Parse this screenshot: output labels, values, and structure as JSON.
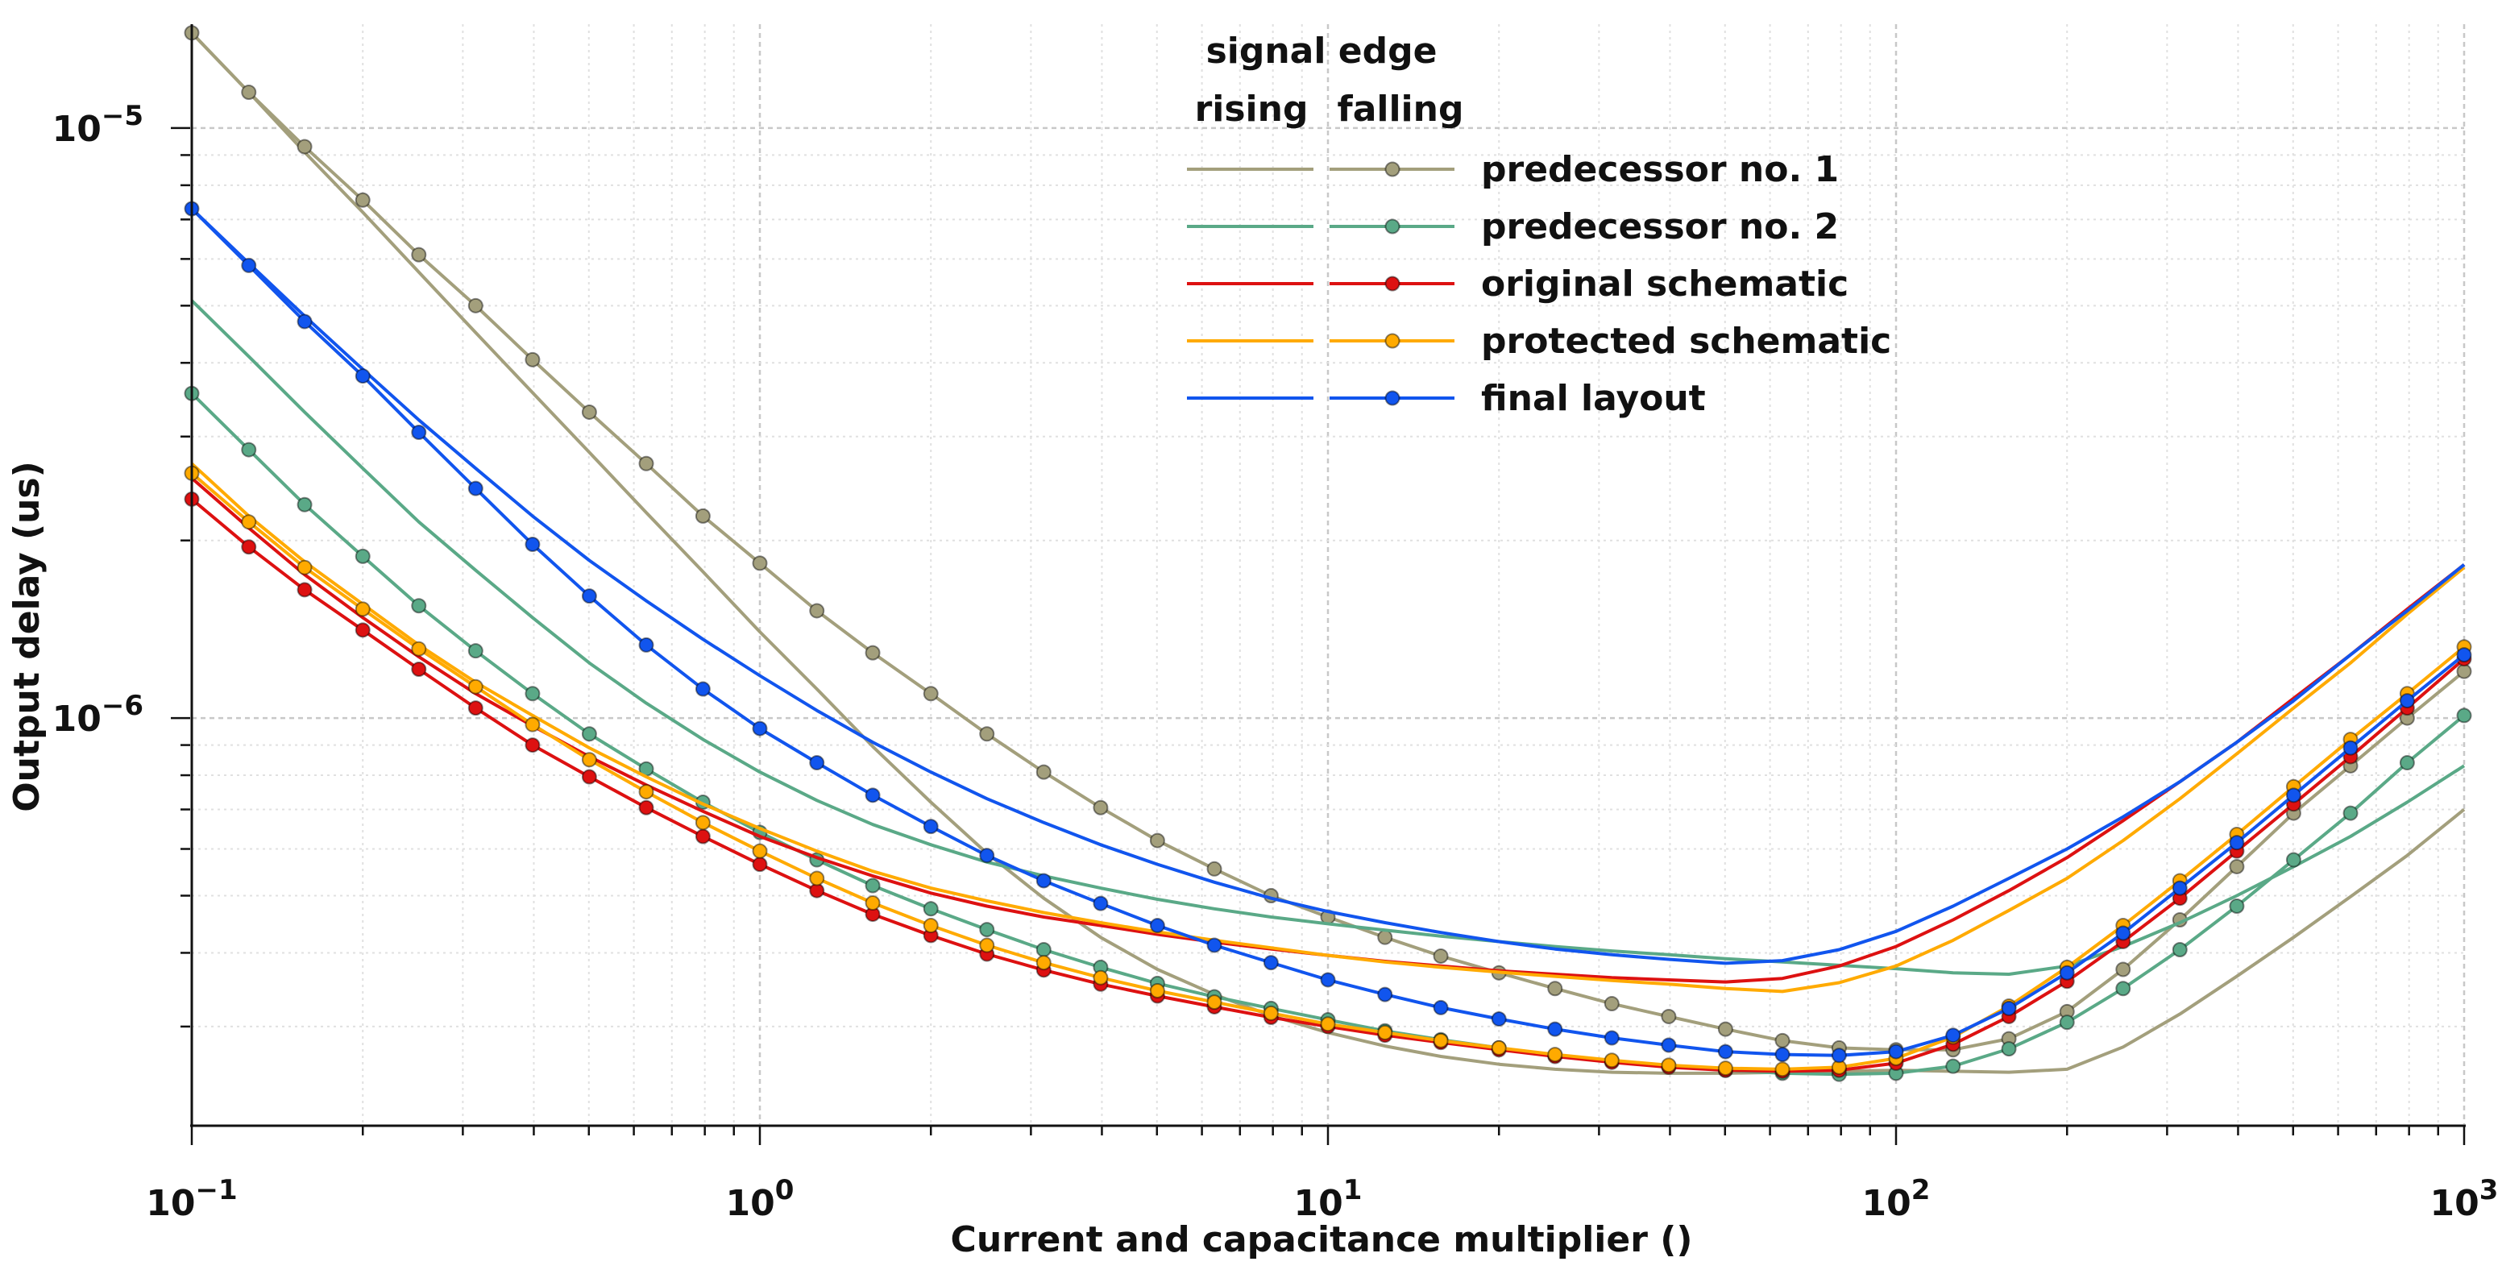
{
  "chart_data": {
    "type": "line",
    "title": "",
    "xlabel": "Current and capacitance multiplier ()",
    "ylabel": "Output delay (us)",
    "xscale": "log",
    "yscale": "log",
    "xlim": [
      0.1,
      1000
    ],
    "ylim": [
      2.05e-07,
      1.5e-05
    ],
    "grid": true,
    "x_ticks": [
      {
        "base": "10",
        "exp": "−1",
        "value": 0.1
      },
      {
        "base": "10",
        "exp": "0",
        "value": 1
      },
      {
        "base": "10",
        "exp": "1",
        "value": 10
      },
      {
        "base": "10",
        "exp": "2",
        "value": 100
      },
      {
        "base": "10",
        "exp": "3",
        "value": 1000
      }
    ],
    "y_ticks": [
      {
        "base": "10",
        "exp": "−6",
        "value": 1e-06
      },
      {
        "base": "10",
        "exp": "−5",
        "value": 1e-05
      }
    ],
    "legend": {
      "header_line1": "signal edge",
      "col_rising": "rising",
      "col_falling": "falling",
      "position": "top-center"
    },
    "x": [
      0.1,
      0.126,
      0.158,
      0.2,
      0.251,
      0.316,
      0.398,
      0.501,
      0.631,
      0.794,
      1,
      1.26,
      1.58,
      2,
      2.51,
      3.16,
      3.98,
      5.01,
      6.31,
      7.94,
      10,
      12.6,
      15.8,
      20,
      25.1,
      31.6,
      39.8,
      50.1,
      63.1,
      79.4,
      100,
      126,
      158,
      200,
      251,
      316,
      398,
      501,
      631,
      794,
      1000
    ],
    "series": [
      {
        "name": "predecessor no. 1",
        "color": "#a39f7c",
        "rising": [
          1.45e-05,
          1.15e-05,
          9.1e-06,
          7.2e-06,
          5.7e-06,
          4.5e-06,
          3.56e-06,
          2.82e-06,
          2.23e-06,
          1.77e-06,
          1.4e-06,
          1.12e-06,
          8.95e-07,
          7.2e-07,
          5.9e-07,
          4.95e-07,
          4.25e-07,
          3.75e-07,
          3.4e-07,
          3.13e-07,
          2.93e-07,
          2.78e-07,
          2.67e-07,
          2.59e-07,
          2.54e-07,
          2.51e-07,
          2.5e-07,
          2.5e-07,
          2.51e-07,
          2.52e-07,
          2.53e-07,
          2.52e-07,
          2.51e-07,
          2.54e-07,
          2.77e-07,
          3.15e-07,
          3.65e-07,
          4.25e-07,
          4.98e-07,
          5.85e-07,
          7e-07
        ],
        "falling": [
          1.45e-05,
          1.15e-05,
          9.3e-06,
          7.55e-06,
          6.1e-06,
          5e-06,
          4.05e-06,
          3.3e-06,
          2.7e-06,
          2.2e-06,
          1.83e-06,
          1.52e-06,
          1.29e-06,
          1.1e-06,
          9.4e-07,
          8.1e-07,
          7.05e-07,
          6.2e-07,
          5.55e-07,
          5e-07,
          4.6e-07,
          4.25e-07,
          3.95e-07,
          3.7e-07,
          3.48e-07,
          3.28e-07,
          3.12e-07,
          2.97e-07,
          2.84e-07,
          2.76e-07,
          2.74e-07,
          2.74e-07,
          2.86e-07,
          3.18e-07,
          3.75e-07,
          4.55e-07,
          5.6e-07,
          6.9e-07,
          8.3e-07,
          1e-06,
          1.2e-06
        ]
      },
      {
        "name": "predecessor no. 2",
        "color": "#5aa987",
        "rising": [
          5.1e-06,
          4.1e-06,
          3.3e-06,
          2.65e-06,
          2.15e-06,
          1.78e-06,
          1.48e-06,
          1.24e-06,
          1.06e-06,
          9.2e-07,
          8.1e-07,
          7.25e-07,
          6.6e-07,
          6.1e-07,
          5.7e-07,
          5.4e-07,
          5.15e-07,
          4.93e-07,
          4.75e-07,
          4.6e-07,
          4.48e-07,
          4.37e-07,
          4.27e-07,
          4.18e-07,
          4.1e-07,
          4.03e-07,
          3.97e-07,
          3.91e-07,
          3.86e-07,
          3.81e-07,
          3.76e-07,
          3.7e-07,
          3.68e-07,
          3.8e-07,
          4.1e-07,
          4.5e-07,
          5e-07,
          5.6e-07,
          6.3e-07,
          7.2e-07,
          8.3e-07
        ],
        "falling": [
          3.55e-06,
          2.85e-06,
          2.3e-06,
          1.88e-06,
          1.55e-06,
          1.3e-06,
          1.1e-06,
          9.4e-07,
          8.2e-07,
          7.2e-07,
          6.4e-07,
          5.75e-07,
          5.2e-07,
          4.75e-07,
          4.38e-07,
          4.05e-07,
          3.78e-07,
          3.55e-07,
          3.37e-07,
          3.22e-07,
          3.08e-07,
          2.95e-07,
          2.85e-07,
          2.76e-07,
          2.68e-07,
          2.62e-07,
          2.57e-07,
          2.53e-07,
          2.5e-07,
          2.49e-07,
          2.5e-07,
          2.57e-07,
          2.75e-07,
          3.05e-07,
          3.48e-07,
          4.05e-07,
          4.8e-07,
          5.75e-07,
          6.9e-07,
          8.4e-07,
          1.01e-06
        ]
      },
      {
        "name": "original schematic",
        "color": "#dd1111",
        "rising": [
          2.55e-06,
          2.1e-06,
          1.75e-06,
          1.48e-06,
          1.27e-06,
          1.1e-06,
          9.7e-07,
          8.6e-07,
          7.7e-07,
          6.95e-07,
          6.3e-07,
          5.8e-07,
          5.4e-07,
          5.05e-07,
          4.8e-07,
          4.6e-07,
          4.45e-07,
          4.3e-07,
          4.17e-07,
          4.06e-07,
          3.96e-07,
          3.87e-07,
          3.8e-07,
          3.73e-07,
          3.68e-07,
          3.63e-07,
          3.6e-07,
          3.57e-07,
          3.62e-07,
          3.8e-07,
          4.1e-07,
          4.55e-07,
          5.1e-07,
          5.8e-07,
          6.7e-07,
          7.8e-07,
          9.1e-07,
          1.08e-06,
          1.28e-06,
          1.53e-06,
          1.82e-06
        ],
        "falling": [
          2.35e-06,
          1.95e-06,
          1.65e-06,
          1.41e-06,
          1.21e-06,
          1.04e-06,
          9e-07,
          7.95e-07,
          7.05e-07,
          6.3e-07,
          5.65e-07,
          5.1e-07,
          4.65e-07,
          4.28e-07,
          3.98e-07,
          3.74e-07,
          3.54e-07,
          3.38e-07,
          3.24e-07,
          3.11e-07,
          3e-07,
          2.9e-07,
          2.82e-07,
          2.74e-07,
          2.67e-07,
          2.61e-07,
          2.56e-07,
          2.53e-07,
          2.52e-07,
          2.53e-07,
          2.6e-07,
          2.8e-07,
          3.12e-07,
          3.58e-07,
          4.18e-07,
          4.95e-07,
          5.95e-07,
          7.15e-07,
          8.6e-07,
          1.04e-06,
          1.26e-06
        ]
      },
      {
        "name": "protected schematic",
        "color": "#ffaa00",
        "rising": [
          2.7e-06,
          2.2e-06,
          1.84e-06,
          1.56e-06,
          1.33e-06,
          1.15e-06,
          1.01e-06,
          8.9e-07,
          7.95e-07,
          7.15e-07,
          6.5e-07,
          5.95e-07,
          5.5e-07,
          5.15e-07,
          4.9e-07,
          4.68e-07,
          4.5e-07,
          4.34e-07,
          4.2e-07,
          4.08e-07,
          3.96e-07,
          3.86e-07,
          3.78e-07,
          3.71e-07,
          3.65e-07,
          3.59e-07,
          3.54e-07,
          3.48e-07,
          3.44e-07,
          3.56e-07,
          3.8e-07,
          4.2e-07,
          4.72e-07,
          5.35e-07,
          6.2e-07,
          7.3e-07,
          8.7e-07,
          1.04e-06,
          1.24e-06,
          1.5e-06,
          1.8e-06
        ],
        "falling": [
          2.6e-06,
          2.15e-06,
          1.8e-06,
          1.53e-06,
          1.31e-06,
          1.13e-06,
          9.75e-07,
          8.5e-07,
          7.5e-07,
          6.65e-07,
          5.95e-07,
          5.35e-07,
          4.86e-07,
          4.45e-07,
          4.12e-07,
          3.85e-07,
          3.63e-07,
          3.45e-07,
          3.3e-07,
          3.16e-07,
          3.03e-07,
          2.93e-07,
          2.84e-07,
          2.76e-07,
          2.69e-07,
          2.63e-07,
          2.58e-07,
          2.55e-07,
          2.54e-07,
          2.56e-07,
          2.65e-07,
          2.88e-07,
          3.25e-07,
          3.78e-07,
          4.45e-07,
          5.3e-07,
          6.35e-07,
          7.65e-07,
          9.2e-07,
          1.1e-06,
          1.32e-06
        ]
      },
      {
        "name": "final layout",
        "color": "#1155ee",
        "rising": [
          7.3e-06,
          5.9e-06,
          4.8e-06,
          3.9e-06,
          3.2e-06,
          2.65e-06,
          2.2e-06,
          1.85e-06,
          1.58e-06,
          1.36e-06,
          1.18e-06,
          1.03e-06,
          9.1e-07,
          8.1e-07,
          7.3e-07,
          6.65e-07,
          6.1e-07,
          5.65e-07,
          5.27e-07,
          4.95e-07,
          4.7e-07,
          4.5e-07,
          4.33e-07,
          4.18e-07,
          4.06e-07,
          3.97e-07,
          3.9e-07,
          3.84e-07,
          3.88e-07,
          4.05e-07,
          4.35e-07,
          4.8e-07,
          5.35e-07,
          6e-07,
          6.8e-07,
          7.8e-07,
          9.1e-07,
          1.07e-06,
          1.28e-06,
          1.52e-06,
          1.82e-06
        ],
        "falling": [
          7.3e-06,
          5.85e-06,
          4.7e-06,
          3.8e-06,
          3.05e-06,
          2.45e-06,
          1.97e-06,
          1.61e-06,
          1.33e-06,
          1.12e-06,
          9.6e-07,
          8.4e-07,
          7.4e-07,
          6.55e-07,
          5.85e-07,
          5.3e-07,
          4.85e-07,
          4.45e-07,
          4.12e-07,
          3.85e-07,
          3.6e-07,
          3.4e-07,
          3.23e-07,
          3.09e-07,
          2.97e-07,
          2.87e-07,
          2.79e-07,
          2.72e-07,
          2.69e-07,
          2.68e-07,
          2.72e-07,
          2.9e-07,
          3.22e-07,
          3.7e-07,
          4.32e-07,
          5.15e-07,
          6.15e-07,
          7.4e-07,
          8.9e-07,
          1.07e-06,
          1.28e-06
        ]
      }
    ]
  }
}
